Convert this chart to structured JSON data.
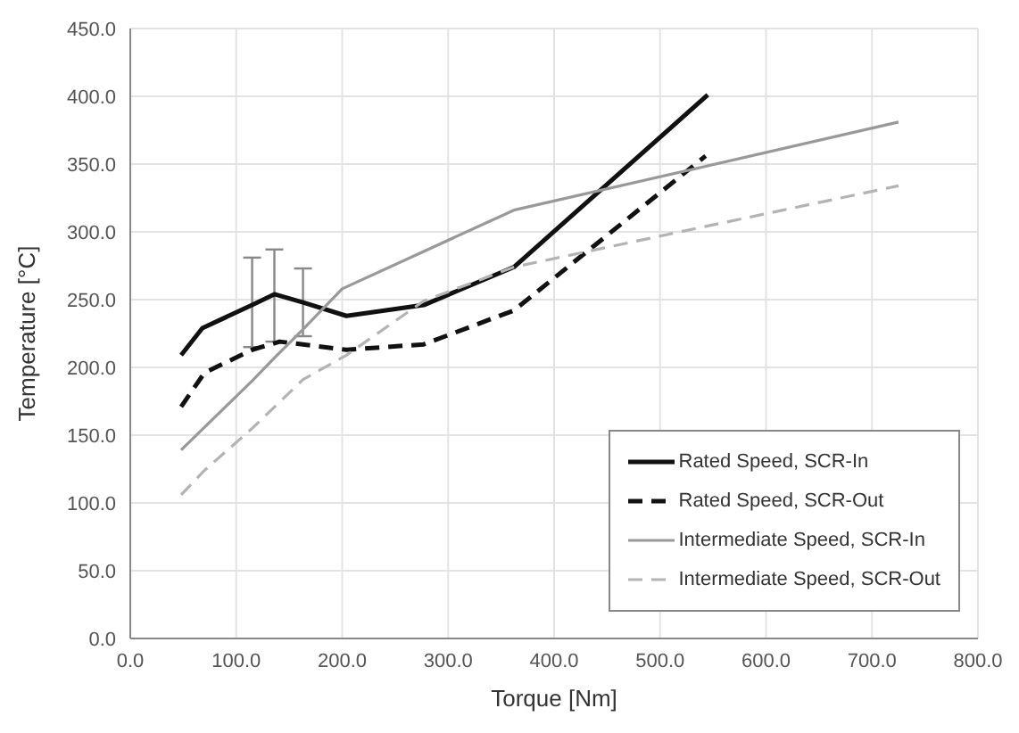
{
  "chart_data": {
    "type": "line",
    "xlabel": "Torque [Nm]",
    "ylabel": "Temperature [°C]",
    "xlim": [
      0,
      800
    ],
    "xticks": [
      {
        "value": 0,
        "label": "0.0"
      },
      {
        "value": 100,
        "label": "100.0"
      },
      {
        "value": 200,
        "label": "200.0"
      },
      {
        "value": 300,
        "label": "300.0"
      },
      {
        "value": 400,
        "label": "400.0"
      },
      {
        "value": 500,
        "label": "500.0"
      },
      {
        "value": 600,
        "label": "600.0"
      },
      {
        "value": 700,
        "label": "700.0"
      },
      {
        "value": 800,
        "label": "800.0"
      }
    ],
    "ylim": [
      0,
      450
    ],
    "yticks": [
      {
        "value": 0,
        "label": "0.0"
      },
      {
        "value": 50,
        "label": "50.0"
      },
      {
        "value": 100,
        "label": "100.0"
      },
      {
        "value": 150,
        "label": "150.0"
      },
      {
        "value": 200,
        "label": "200.0"
      },
      {
        "value": 250,
        "label": "250.0"
      },
      {
        "value": 300,
        "label": "300.0"
      },
      {
        "value": 350,
        "label": "350.0"
      },
      {
        "value": 400,
        "label": "400.0"
      },
      {
        "value": 450,
        "label": "450.0"
      }
    ],
    "grid": true,
    "legend": "bottom right",
    "marker": "none",
    "series": [
      {
        "name": "Rated Speed, SCR-In",
        "color": "#111111",
        "line_style": "solid",
        "x": [
          48,
          68,
          115,
          136,
          163,
          204,
          277,
          362,
          545
        ],
        "values": [
          209,
          229,
          246,
          254,
          248,
          238,
          246,
          274,
          401
        ],
        "errors": [
          null,
          null,
          [
            215,
            281
          ],
          [
            219,
            287
          ],
          [
            223,
            273
          ],
          null,
          null,
          null,
          null
        ]
      },
      {
        "name": "Rated Speed, SCR-Out",
        "color": "#111111",
        "line_style": "dashed",
        "x": [
          48,
          70,
          115,
          141,
          204,
          277,
          362,
          543
        ],
        "values": [
          171,
          196,
          213,
          219,
          213,
          217,
          242,
          356
        ]
      },
      {
        "name": "Intermediate Speed, SCR-In",
        "color": "#999999",
        "line_style": "solid",
        "x": [
          48,
          115,
          136,
          163,
          200,
          362,
          725
        ],
        "values": [
          139,
          190,
          207,
          228,
          258,
          316,
          381
        ]
      },
      {
        "name": "Intermediate Speed, SCR-Out",
        "color": "#b3b3b3",
        "line_style": "dashed",
        "x": [
          48,
          70,
          115,
          163,
          204,
          277,
          362,
          543,
          725
        ],
        "values": [
          106,
          124,
          155,
          191,
          209,
          249,
          274,
          304,
          334
        ]
      }
    ]
  }
}
